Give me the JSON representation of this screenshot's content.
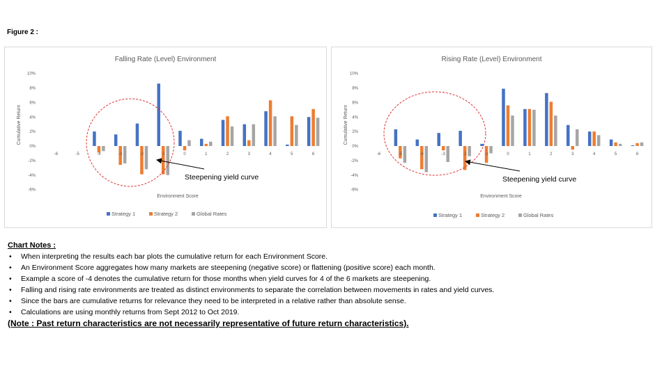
{
  "figure_label": "Figure 2 :",
  "chart_data": [
    {
      "type": "bar",
      "title": "Falling Rate (Level) Environment",
      "xlabel": "Environment Score",
      "ylabel": "Cumulative Return",
      "ylim": [
        -6,
        10
      ],
      "yticks": [
        "10%",
        "8%",
        "6%",
        "4%",
        "2%",
        "0%",
        "-2%",
        "-4%",
        "-6%"
      ],
      "categories": [
        "-6",
        "-5",
        "-4",
        "-3",
        "-2",
        "-1",
        "0",
        "1",
        "2",
        "3",
        "4",
        "5",
        "6"
      ],
      "series": [
        {
          "name": "Strategy 1",
          "color": "#4472c4",
          "values": [
            0,
            0,
            2.0,
            1.6,
            3.1,
            8.6,
            2.1,
            1.0,
            3.6,
            3.0,
            4.8,
            0.2,
            4.0
          ]
        },
        {
          "name": "Strategy 2",
          "color": "#ed7d31",
          "values": [
            0,
            0,
            -0.9,
            -2.6,
            -3.9,
            -3.9,
            -0.6,
            0.3,
            4.1,
            0.8,
            6.3,
            4.1,
            5.1
          ]
        },
        {
          "name": "Global Rates",
          "color": "#a5a5a5",
          "values": [
            0,
            0,
            -0.7,
            -2.4,
            -3.2,
            -4.0,
            0.8,
            0.6,
            2.7,
            3.0,
            4.1,
            2.9,
            3.9
          ]
        }
      ],
      "grid": false,
      "legend": "bottom",
      "annotation": "Steepening yield curve"
    },
    {
      "type": "bar",
      "title": "Rising Rate (Level) Environment",
      "xlabel": "Environment Score",
      "ylabel": "Cumulative Return",
      "ylim": [
        -6,
        10
      ],
      "yticks": [
        "10%",
        "8%",
        "6%",
        "4%",
        "2%",
        "0%",
        "-2%",
        "-4%",
        "-6%"
      ],
      "categories": [
        "-6",
        "-5",
        "-4",
        "-3",
        "-2",
        "-1",
        "0",
        "1",
        "2",
        "3",
        "4",
        "5",
        "6"
      ],
      "series": [
        {
          "name": "Strategy 1",
          "color": "#4472c4",
          "values": [
            0,
            2.3,
            0.9,
            1.8,
            2.1,
            0.3,
            7.9,
            5.1,
            7.3,
            2.9,
            2.0,
            0.9,
            0.1
          ]
        },
        {
          "name": "Strategy 2",
          "color": "#ed7d31",
          "values": [
            0,
            -1.7,
            -3.2,
            -0.6,
            -3.3,
            -2.3,
            5.6,
            5.1,
            6.1,
            -0.5,
            2.0,
            0.5,
            0.4
          ]
        },
        {
          "name": "Global Rates",
          "color": "#a5a5a5",
          "values": [
            0,
            -2.3,
            -3.6,
            -2.2,
            -1.4,
            -1.0,
            4.2,
            5.0,
            4.2,
            2.3,
            1.5,
            0.3,
            0.5
          ]
        }
      ],
      "grid": false,
      "legend": "bottom",
      "annotation": "Steepening yield curve"
    }
  ],
  "notes": {
    "title": "Chart Notes :",
    "items": [
      "When interpreting the results each bar plots the cumulative return for each Environment Score.",
      "An Environment Score aggregates how many markets are steepening (negative score) or flattening (positive score) each month.",
      "Example a score of -4 denotes the cumulative return for those months when yield curves for 4 of the 6 markets are steepening.",
      "Falling and rising rate environments are treated as distinct environments to separate the correlation between movements in rates and yield curves.",
      "Since the bars are cumulative returns for relevance they need to be interpreted in a relative rather than absolute sense.",
      "Calculations are using monthly returns from Sept 2012 to Oct 2019."
    ],
    "footer": "(Note : Past return characteristics are not necessarily representative of future return characteristics)."
  }
}
